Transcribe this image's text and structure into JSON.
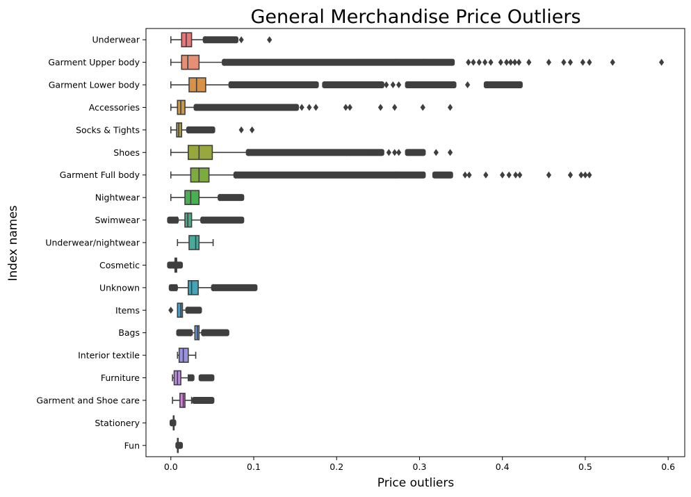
{
  "chart_data": {
    "type": "boxplot",
    "orientation": "horizontal",
    "title": "General Merchandise Price Outliers",
    "xlabel": "Price outliers",
    "ylabel": "Index names",
    "xlim": [
      -0.03,
      0.62
    ],
    "xticks": [
      0.0,
      0.1,
      0.2,
      0.3,
      0.4,
      0.5,
      0.6
    ],
    "xtick_labels": [
      "0.0",
      "0.1",
      "0.2",
      "0.3",
      "0.4",
      "0.5",
      "0.6"
    ],
    "grid": false,
    "categories": [
      "Underwear",
      "Garment Upper body",
      "Garment Lower body",
      "Accessories",
      "Socks & Tights",
      "Shoes",
      "Garment Full body",
      "Nightwear",
      "Swimwear",
      "Underwear/nightwear",
      "Cosmetic",
      "Unknown",
      "Items",
      "Bags",
      "Interior textile",
      "Furniture",
      "Garment and Shoe care",
      "Stationery",
      "Fun"
    ],
    "boxes": [
      {
        "category": "Underwear",
        "color": "#e5787c",
        "whisker_low": 0.0,
        "q1": 0.013,
        "median": 0.0185,
        "q3": 0.025,
        "whisker_high": 0.041,
        "outlier_ranges": [
          [
            0.041,
            0.079
          ]
        ],
        "outliers": [
          0.085,
          0.119
        ]
      },
      {
        "category": "Garment Upper body",
        "color": "#e68f75",
        "whisker_low": 0.0,
        "q1": 0.013,
        "median": 0.0205,
        "q3": 0.034,
        "whisker_high": 0.064,
        "outlier_ranges": [
          [
            0.064,
            0.272
          ],
          [
            0.272,
            0.305
          ],
          [
            0.305,
            0.34
          ]
        ],
        "outliers": [
          0.359,
          0.365,
          0.372,
          0.379,
          0.386,
          0.398,
          0.405,
          0.41,
          0.415,
          0.42,
          0.432,
          0.456,
          0.474,
          0.482,
          0.497,
          0.505,
          0.533,
          0.592
        ]
      },
      {
        "category": "Garment Lower body",
        "color": "#d9914a",
        "whisker_low": 0.0,
        "q1": 0.022,
        "median": 0.031,
        "q3": 0.042,
        "whisker_high": 0.072,
        "outlier_ranges": [
          [
            0.072,
            0.176
          ],
          [
            0.185,
            0.255
          ],
          [
            0.285,
            0.342
          ],
          [
            0.38,
            0.422
          ]
        ],
        "outliers": [
          0.26,
          0.268,
          0.275,
          0.358,
          0.39,
          0.396
        ]
      },
      {
        "category": "Accessories",
        "color": "#c99a4e",
        "whisker_low": 0.0,
        "q1": 0.008,
        "median": 0.012,
        "q3": 0.017,
        "whisker_high": 0.03,
        "outlier_ranges": [
          [
            0.03,
            0.124
          ],
          [
            0.124,
            0.152
          ]
        ],
        "outliers": [
          0.158,
          0.167,
          0.175,
          0.211,
          0.216,
          0.253,
          0.27,
          0.304,
          0.337
        ]
      },
      {
        "category": "Socks & Tights",
        "color": "#b5a04c",
        "whisker_low": 0.0,
        "q1": 0.007,
        "median": 0.0095,
        "q3": 0.013,
        "whisker_high": 0.021,
        "outlier_ranges": [
          [
            0.021,
            0.051
          ]
        ],
        "outliers": [
          0.085,
          0.098
        ]
      },
      {
        "category": "Shoes",
        "color": "#99a83d",
        "whisker_low": 0.0,
        "q1": 0.021,
        "median": 0.034,
        "q3": 0.05,
        "whisker_high": 0.093,
        "outlier_ranges": [
          [
            0.093,
            0.212
          ],
          [
            0.212,
            0.255
          ],
          [
            0.285,
            0.305
          ]
        ],
        "outliers": [
          0.216,
          0.228,
          0.236,
          0.243,
          0.248,
          0.263,
          0.27,
          0.275,
          0.32,
          0.337
        ]
      },
      {
        "category": "Garment Full body",
        "color": "#7eab3d",
        "whisker_low": 0.0,
        "q1": 0.024,
        "median": 0.034,
        "q3": 0.046,
        "whisker_high": 0.078,
        "outlier_ranges": [
          [
            0.078,
            0.272
          ],
          [
            0.272,
            0.305
          ],
          [
            0.318,
            0.338
          ]
        ],
        "outliers": [
          0.355,
          0.36,
          0.38,
          0.4,
          0.408,
          0.416,
          0.421,
          0.456,
          0.482,
          0.495,
          0.5,
          0.505
        ]
      },
      {
        "category": "Nightwear",
        "color": "#4aae52",
        "whisker_low": 0.0,
        "q1": 0.017,
        "median": 0.024,
        "q3": 0.034,
        "whisker_high": 0.059,
        "outlier_ranges": [
          [
            0.059,
            0.086
          ]
        ],
        "outliers": []
      },
      {
        "category": "Swimwear",
        "color": "#4bad85",
        "whisker_low": 0.008,
        "q1": 0.017,
        "median": 0.0205,
        "q3": 0.025,
        "whisker_high": 0.038,
        "outlier_ranges": [
          [
            -0.002,
            0.007
          ],
          [
            0.038,
            0.086
          ]
        ],
        "outliers": []
      },
      {
        "category": "Underwear/nightwear",
        "color": "#45ac9c",
        "whisker_low": 0.008,
        "q1": 0.022,
        "median": 0.03,
        "q3": 0.034,
        "whisker_high": 0.051,
        "outlier_ranges": [],
        "outliers": []
      },
      {
        "category": "Cosmetic",
        "color": "#48aaac",
        "whisker_low": 0.004,
        "q1": 0.005,
        "median": 0.006,
        "q3": 0.007,
        "whisker_high": 0.008,
        "outlier_ranges": [
          [
            -0.002,
            0.004
          ],
          [
            0.008,
            0.012
          ]
        ],
        "outliers": []
      },
      {
        "category": "Unknown",
        "color": "#45a5b8",
        "whisker_low": 0.007,
        "q1": 0.021,
        "median": 0.025,
        "q3": 0.033,
        "whisker_high": 0.051,
        "outlier_ranges": [
          [
            0.0,
            0.006
          ],
          [
            0.051,
            0.102
          ]
        ],
        "outliers": []
      },
      {
        "category": "Items",
        "color": "#4aa0c8",
        "whisker_low": 0.008,
        "q1": 0.008,
        "median": 0.012,
        "q3": 0.014,
        "whisker_high": 0.02,
        "outlier_ranges": [
          [
            0.02,
            0.035
          ]
        ],
        "outliers": [
          0.0
        ]
      },
      {
        "category": "Bags",
        "color": "#6d9fe0",
        "whisker_low": 0.024,
        "q1": 0.029,
        "median": 0.032,
        "q3": 0.034,
        "whisker_high": 0.039,
        "outlier_ranges": [
          [
            0.009,
            0.024
          ],
          [
            0.039,
            0.068
          ]
        ],
        "outliers": []
      },
      {
        "category": "Interior textile",
        "color": "#9892e0",
        "whisker_low": 0.008,
        "q1": 0.01,
        "median": 0.015,
        "q3": 0.021,
        "whisker_high": 0.03,
        "outlier_ranges": [],
        "outliers": []
      },
      {
        "category": "Furniture",
        "color": "#bb8ee0",
        "whisker_low": 0.002,
        "q1": 0.004,
        "median": 0.008,
        "q3": 0.012,
        "whisker_high": 0.021,
        "outlier_ranges": [
          [
            0.023,
            0.026
          ],
          [
            0.036,
            0.05
          ]
        ],
        "outliers": []
      },
      {
        "category": "Garment and Shoe care",
        "color": "#cf83d4",
        "whisker_low": 0.002,
        "q1": 0.011,
        "median": 0.015,
        "q3": 0.017,
        "whisker_high": 0.025,
        "outlier_ranges": [
          [
            0.028,
            0.05
          ]
        ],
        "outliers": []
      },
      {
        "category": "Stationery",
        "color": "#dd7eb8",
        "whisker_low": 0.003,
        "q1": 0.003,
        "median": 0.003,
        "q3": 0.003,
        "whisker_high": 0.003,
        "outlier_ranges": [
          [
            0.001,
            0.004
          ]
        ],
        "outliers": []
      },
      {
        "category": "Fun",
        "color": "#e07a9e",
        "whisker_low": 0.008,
        "q1": 0.008,
        "median": 0.008,
        "q3": 0.008,
        "whisker_high": 0.008,
        "outlier_ranges": [
          [
            0.008,
            0.012
          ]
        ],
        "outliers": []
      }
    ]
  }
}
